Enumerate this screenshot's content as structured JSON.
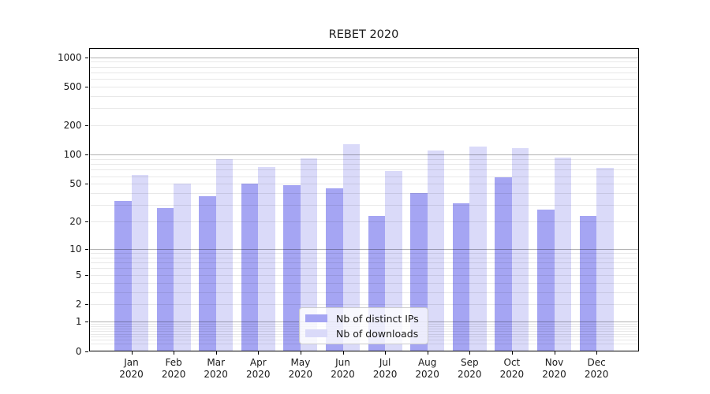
{
  "title": "REBET 2020",
  "chart_data": {
    "type": "bar",
    "title": "REBET 2020",
    "categories": [
      "Jan",
      "Feb",
      "Mar",
      "Apr",
      "May",
      "Jun",
      "Jul",
      "Aug",
      "Sep",
      "Oct",
      "Nov",
      "Dec"
    ],
    "category_year": "2020",
    "series": [
      {
        "name": "Nb of distinct IPs",
        "color": "#a5a5f3",
        "values": [
          33,
          28,
          37,
          50,
          48,
          45,
          23,
          40,
          31,
          58,
          27,
          23
        ]
      },
      {
        "name": "Nb of downloads",
        "color": "#dadaf9",
        "values": [
          62,
          50,
          90,
          75,
          91,
          128,
          68,
          111,
          121,
          117,
          94,
          73
        ]
      }
    ],
    "xlabel": "",
    "ylabel": "",
    "yscale": "symlog",
    "yticks": [
      "1000",
      "500",
      "200",
      "100",
      "50",
      "20",
      "10",
      "5",
      "2",
      "1",
      "0"
    ],
    "ylim": [
      0,
      1200
    ],
    "grid": true,
    "legend_position": "lower center"
  }
}
